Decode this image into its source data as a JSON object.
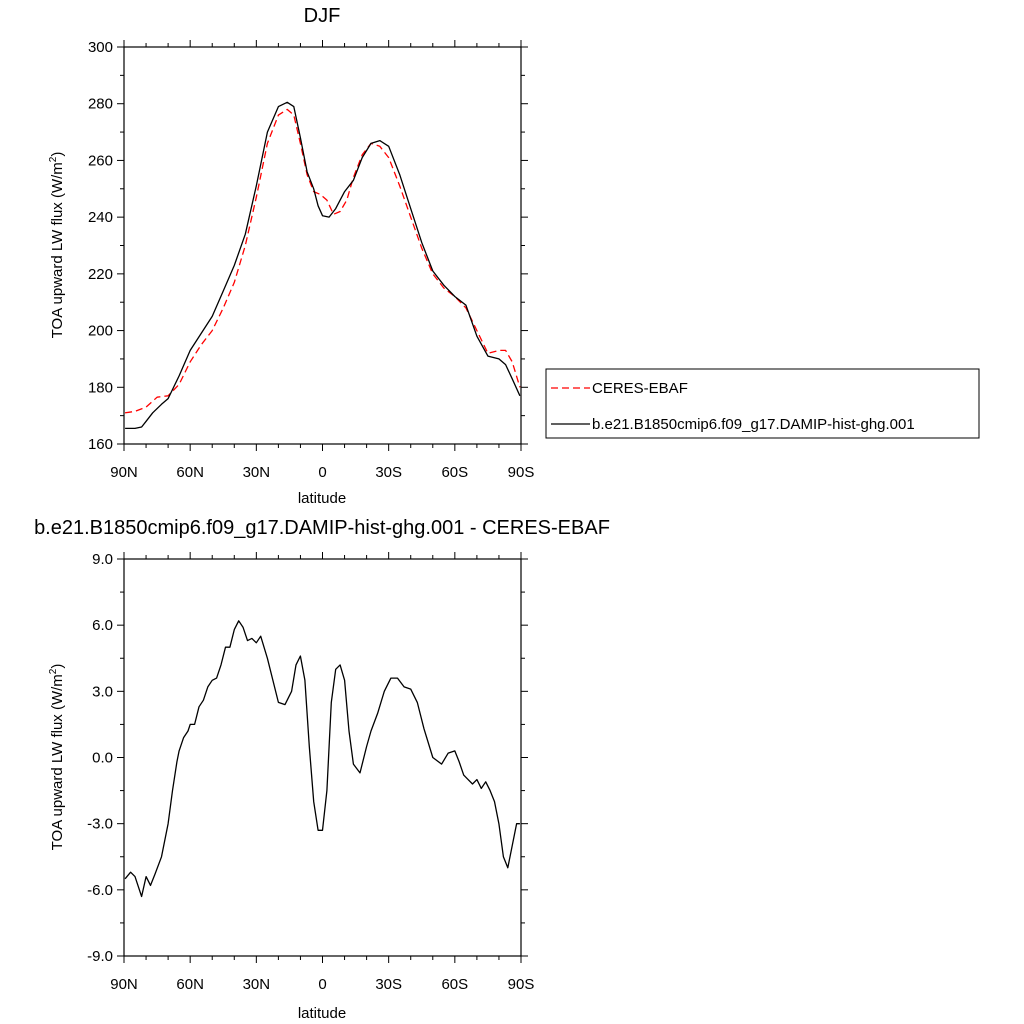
{
  "chart_data": [
    {
      "type": "line",
      "title": "DJF",
      "xlabel": "latitude",
      "ylabel": "TOA upward LW flux (W/m",
      "ylabel_sup": "2",
      "ylabel_close": ")",
      "xlim": [
        90,
        -90
      ],
      "ylim": [
        160,
        300
      ],
      "xticks": [
        90,
        60,
        30,
        0,
        -30,
        -60,
        -90
      ],
      "xtick_labels": [
        "90N",
        "60N",
        "30N",
        "0",
        "30S",
        "60S",
        "90S"
      ],
      "yticks": [
        160,
        180,
        200,
        220,
        240,
        260,
        280,
        300
      ],
      "ytick_labels": [
        "160",
        "180",
        "200",
        "220",
        "240",
        "260",
        "280",
        "300"
      ],
      "legend": "outside-right",
      "series": [
        {
          "name": "CERES-EBAF",
          "color": "#ff0000",
          "dash": true,
          "x": [
            89.5,
            85,
            80,
            75,
            70,
            65,
            60,
            55,
            50,
            45,
            40,
            35,
            30,
            25,
            20,
            16,
            13,
            10,
            7,
            4,
            1,
            -2,
            -5,
            -8,
            -11,
            -14,
            -18,
            -22,
            -26,
            -30,
            -35,
            -40,
            -45,
            -50,
            -55,
            -60,
            -65,
            -70,
            -75,
            -80,
            -83,
            -86,
            -89.5
          ],
          "values": [
            171,
            171.5,
            173,
            176.5,
            177,
            181,
            189,
            195,
            200,
            208,
            217,
            230,
            247,
            266,
            276,
            278,
            276,
            266,
            255,
            249,
            248,
            246,
            241,
            242,
            246,
            254,
            262,
            266,
            265,
            261,
            251,
            240,
            229,
            220,
            215,
            212,
            208,
            200,
            192,
            193,
            193,
            189,
            180
          ]
        },
        {
          "name": "b.e21.B1850cmip6.f09_g17.DAMIP-hist-ghg.001",
          "color": "#000000",
          "dash": false,
          "x": [
            89.5,
            85,
            82,
            80,
            77,
            73,
            70,
            65,
            60,
            55,
            50,
            45,
            40,
            35,
            30,
            25,
            20,
            16,
            13,
            10,
            7,
            4,
            2,
            0,
            -3,
            -6,
            -10,
            -14,
            -18,
            -22,
            -26,
            -30,
            -35,
            -40,
            -45,
            -50,
            -55,
            -60,
            -65,
            -70,
            -75,
            -80,
            -83,
            -86,
            -89.5
          ],
          "values": [
            165.5,
            165.5,
            166,
            168,
            171,
            174,
            176,
            184,
            193,
            199,
            205,
            214,
            223,
            234,
            251,
            270,
            279,
            280.5,
            279,
            268,
            256,
            250,
            244,
            240.5,
            240,
            243,
            249,
            253,
            261,
            266,
            267,
            265,
            255,
            243,
            231,
            221,
            216,
            212,
            209,
            198,
            191,
            190,
            188,
            183,
            177
          ]
        }
      ]
    },
    {
      "type": "line",
      "title": "b.e21.B1850cmip6.f09_g17.DAMIP-hist-ghg.001 - CERES-EBAF",
      "xlabel": "latitude",
      "ylabel": "TOA upward LW flux (W/m",
      "ylabel_sup": "2",
      "ylabel_close": ")",
      "xlim": [
        90,
        -90
      ],
      "ylim": [
        -9,
        9
      ],
      "xticks": [
        90,
        60,
        30,
        0,
        -30,
        -60,
        -90
      ],
      "xtick_labels": [
        "90N",
        "60N",
        "30N",
        "0",
        "30S",
        "60S",
        "90S"
      ],
      "yticks": [
        -9,
        -6,
        -3,
        0,
        3,
        6,
        9
      ],
      "ytick_labels": [
        "-9.0",
        "-6.0",
        "-3.0",
        "0.0",
        "3.0",
        "6.0",
        "9.0"
      ],
      "legend": "none",
      "series": [
        {
          "color": "#000000",
          "dash": false,
          "x": [
            89.5,
            87,
            85,
            82,
            80,
            78,
            76,
            73,
            70,
            68,
            66,
            65,
            63,
            61,
            60,
            58,
            56,
            54,
            52,
            50,
            48,
            46,
            44,
            42,
            40,
            38,
            36,
            34,
            32,
            30,
            28,
            25,
            20,
            17,
            14,
            12,
            10,
            8,
            6,
            4,
            2,
            0,
            -2,
            -4,
            -6,
            -8,
            -10,
            -12,
            -14,
            -17,
            -20,
            -22,
            -25,
            -28,
            -31,
            -34,
            -37,
            -40,
            -43,
            -46,
            -50,
            -54,
            -57,
            -60,
            -62,
            -64,
            -66,
            -68,
            -70,
            -72,
            -74,
            -76,
            -78,
            -80,
            -82,
            -84,
            -86,
            -88,
            -89.5
          ],
          "values": [
            -5.5,
            -5.2,
            -5.4,
            -6.3,
            -5.4,
            -5.8,
            -5.3,
            -4.5,
            -3.0,
            -1.5,
            -0.2,
            0.3,
            0.9,
            1.2,
            1.5,
            1.5,
            2.3,
            2.6,
            3.2,
            3.5,
            3.6,
            4.2,
            5.0,
            5.0,
            5.8,
            6.2,
            5.9,
            5.3,
            5.4,
            5.2,
            5.5,
            4.5,
            2.5,
            2.4,
            3.0,
            4.2,
            4.6,
            3.5,
            0.5,
            -2.0,
            -3.3,
            -3.3,
            -1.5,
            2.5,
            4.0,
            4.2,
            3.5,
            1.2,
            -0.3,
            -0.7,
            0.5,
            1.2,
            2.0,
            3.0,
            3.6,
            3.6,
            3.2,
            3.1,
            2.5,
            1.3,
            0.0,
            -0.3,
            0.2,
            0.3,
            -0.2,
            -0.8,
            -1.0,
            -1.2,
            -1.0,
            -1.4,
            -1.1,
            -1.5,
            -2.0,
            -3.0,
            -4.5,
            -5.0,
            -4.0,
            -3.0,
            -3.0
          ]
        }
      ]
    }
  ]
}
